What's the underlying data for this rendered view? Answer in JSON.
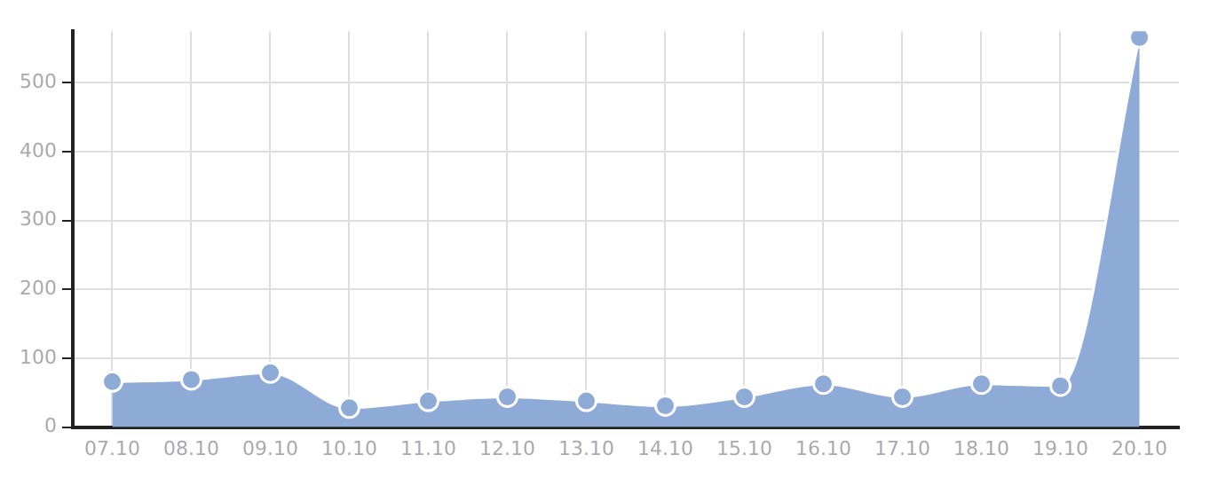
{
  "chart_data": {
    "type": "area",
    "categories": [
      "07.10",
      "08.10",
      "09.10",
      "10.10",
      "11.10",
      "12.10",
      "13.10",
      "14.10",
      "15.10",
      "16.10",
      "17.10",
      "18.10",
      "19.10",
      "20.10"
    ],
    "series": [
      {
        "color": "#8eaad6",
        "values": [
          66,
          69,
          79,
          28,
          38,
          44,
          38,
          31,
          44,
          63,
          44,
          63,
          60,
          566
        ]
      }
    ],
    "ylim": [
      0,
      575
    ],
    "yticks": [
      0,
      100,
      200,
      300,
      400,
      500
    ],
    "grid": true,
    "marker": "circle",
    "legend": false
  }
}
